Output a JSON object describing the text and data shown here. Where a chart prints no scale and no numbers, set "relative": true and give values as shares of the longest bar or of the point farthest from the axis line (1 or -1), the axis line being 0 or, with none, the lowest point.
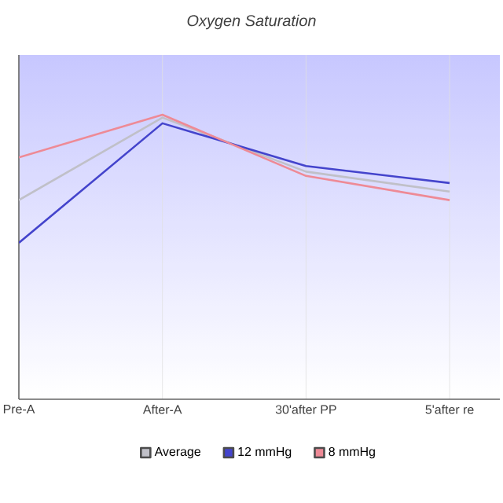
{
  "chart_data": {
    "type": "line",
    "title": "Oxygen Saturation",
    "relative": true,
    "categories": [
      "Pre-A",
      "After-A",
      "30'after PP",
      "5'after re"
    ],
    "series": [
      {
        "name": "Average",
        "color": "#c0c0c8",
        "values": [
          0.7,
          0.99,
          0.8,
          0.73
        ]
      },
      {
        "name": "12 mmHg",
        "color": "#4444cc",
        "values": [
          0.55,
          0.97,
          0.82,
          0.76
        ]
      },
      {
        "name": "8 mmHg",
        "color": "#ee8a96",
        "values": [
          0.85,
          1,
          0.785,
          0.7
        ]
      }
    ],
    "grid": "x",
    "legend": "bottom",
    "marker": "none",
    "line_style": "solid"
  }
}
